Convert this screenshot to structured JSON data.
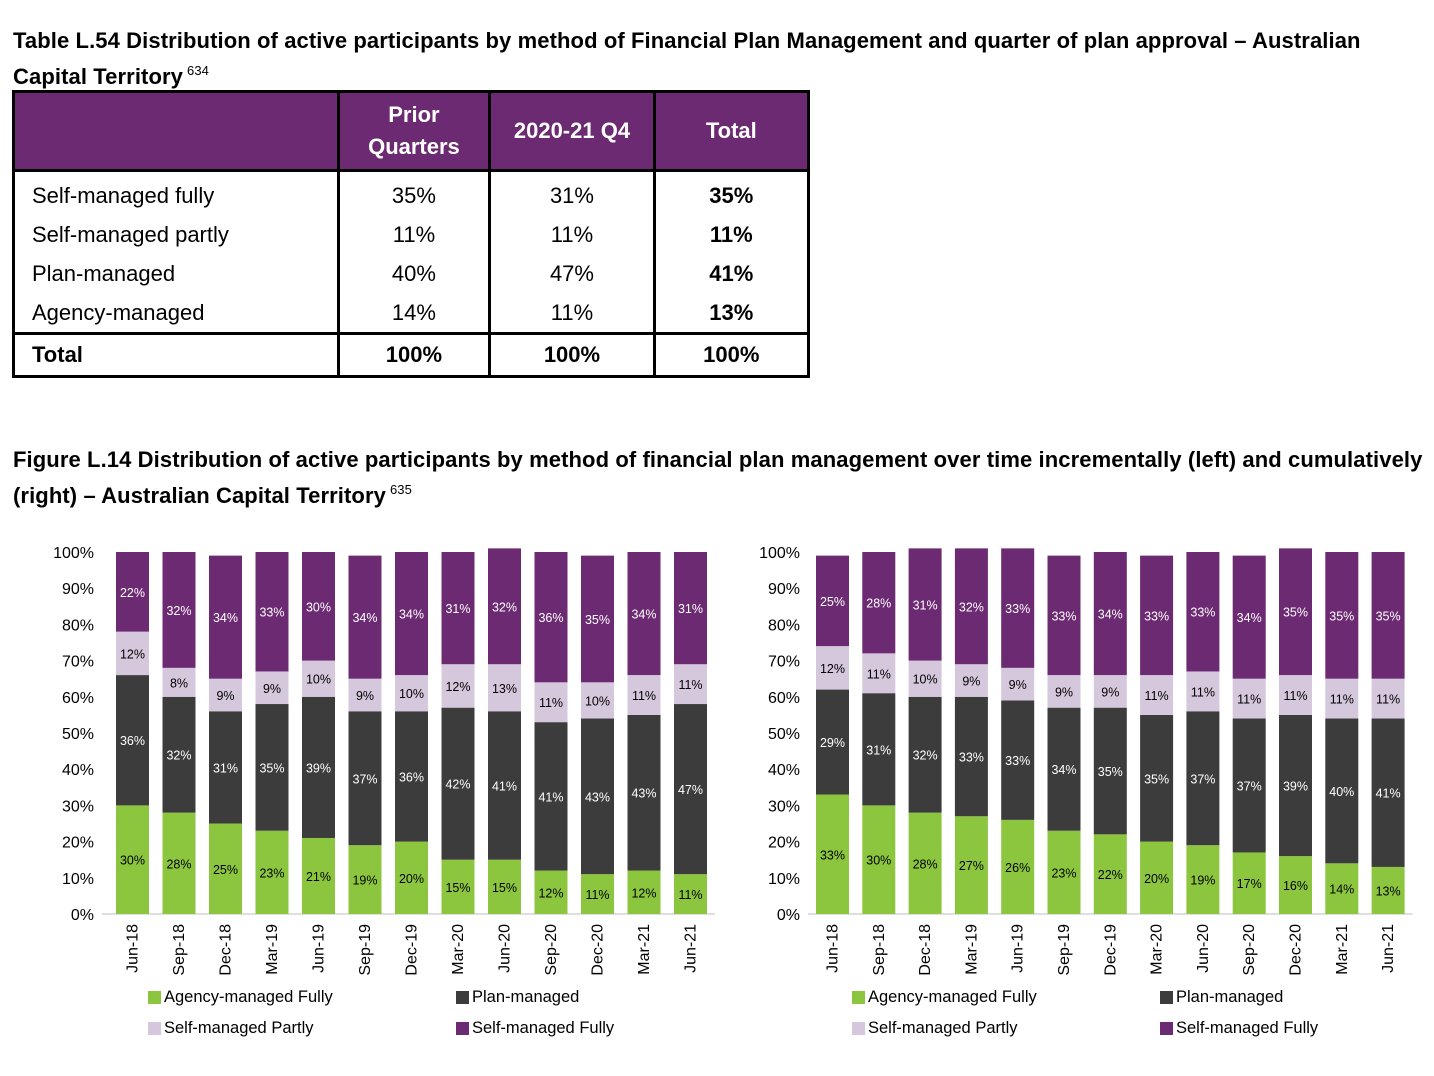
{
  "table": {
    "caption": "Table L.54 Distribution of active participants by method of Financial Plan Management and quarter of plan approval – Australian Capital Territory",
    "footnote": "634",
    "headers": [
      "",
      "Prior Quarters",
      "2020-21 Q4",
      "Total"
    ],
    "rows": [
      {
        "label": "Self-managed fully",
        "prior": "35%",
        "q4": "31%",
        "total": "35%"
      },
      {
        "label": "Self-managed partly",
        "prior": "11%",
        "q4": "11%",
        "total": "11%"
      },
      {
        "label": "Plan-managed",
        "prior": "40%",
        "q4": "47%",
        "total": "41%"
      },
      {
        "label": "Agency-managed",
        "prior": "14%",
        "q4": "11%",
        "total": "13%"
      }
    ],
    "total_row": {
      "label": "Total",
      "prior": "100%",
      "q4": "100%",
      "total": "100%"
    }
  },
  "figure": {
    "caption": "Figure L.14 Distribution of active participants by method of financial plan management over time incrementally (left) and cumulatively (right) – Australian Capital Territory",
    "footnote": "635"
  },
  "colors": {
    "agency": "#8cc63f",
    "plan": "#3c3c3c",
    "self_partly": "#d5c8dd",
    "self_fully": "#6c2a72",
    "header_bg": "#6c2a72"
  },
  "chart_data": [
    {
      "type": "bar",
      "stacked": true,
      "categories": [
        "Jun-18",
        "Sep-18",
        "Dec-18",
        "Mar-19",
        "Jun-19",
        "Sep-19",
        "Dec-19",
        "Mar-20",
        "Jun-20",
        "Sep-20",
        "Dec-20",
        "Mar-21",
        "Jun-21"
      ],
      "ylim": [
        0,
        100
      ],
      "yticks": [
        "0%",
        "10%",
        "20%",
        "30%",
        "40%",
        "50%",
        "60%",
        "70%",
        "80%",
        "90%",
        "100%"
      ],
      "legend_position": "bottom",
      "series": [
        {
          "name": "Agency-managed Fully",
          "color": "#8cc63f",
          "values": [
            30,
            28,
            25,
            23,
            21,
            19,
            20,
            15,
            15,
            12,
            11,
            12,
            11
          ]
        },
        {
          "name": "Plan-managed",
          "color": "#3c3c3c",
          "values": [
            36,
            32,
            31,
            35,
            39,
            37,
            36,
            42,
            41,
            41,
            43,
            43,
            47
          ]
        },
        {
          "name": "Self-managed Partly",
          "color": "#d5c8dd",
          "values": [
            12,
            8,
            9,
            9,
            10,
            9,
            10,
            12,
            13,
            11,
            10,
            11,
            11
          ]
        },
        {
          "name": "Self-managed Fully",
          "color": "#6c2a72",
          "values": [
            22,
            32,
            34,
            33,
            30,
            34,
            34,
            31,
            32,
            36,
            35,
            34,
            31
          ]
        }
      ]
    },
    {
      "type": "bar",
      "stacked": true,
      "categories": [
        "Jun-18",
        "Sep-18",
        "Dec-18",
        "Mar-19",
        "Jun-19",
        "Sep-19",
        "Dec-19",
        "Mar-20",
        "Jun-20",
        "Sep-20",
        "Dec-20",
        "Mar-21",
        "Jun-21"
      ],
      "ylim": [
        0,
        100
      ],
      "yticks": [
        "0%",
        "10%",
        "20%",
        "30%",
        "40%",
        "50%",
        "60%",
        "70%",
        "80%",
        "90%",
        "100%"
      ],
      "legend_position": "bottom",
      "series": [
        {
          "name": "Agency-managed Fully",
          "color": "#8cc63f",
          "values": [
            33,
            30,
            28,
            27,
            26,
            23,
            22,
            20,
            19,
            17,
            16,
            14,
            13
          ]
        },
        {
          "name": "Plan-managed",
          "color": "#3c3c3c",
          "values": [
            29,
            31,
            32,
            33,
            33,
            34,
            35,
            35,
            37,
            37,
            39,
            40,
            41
          ]
        },
        {
          "name": "Self-managed Partly",
          "color": "#d5c8dd",
          "values": [
            12,
            11,
            10,
            9,
            9,
            9,
            9,
            11,
            11,
            11,
            11,
            11,
            11
          ]
        },
        {
          "name": "Self-managed Fully",
          "color": "#6c2a72",
          "values": [
            25,
            28,
            31,
            32,
            33,
            33,
            34,
            33,
            33,
            34,
            35,
            35,
            35
          ]
        }
      ]
    }
  ]
}
